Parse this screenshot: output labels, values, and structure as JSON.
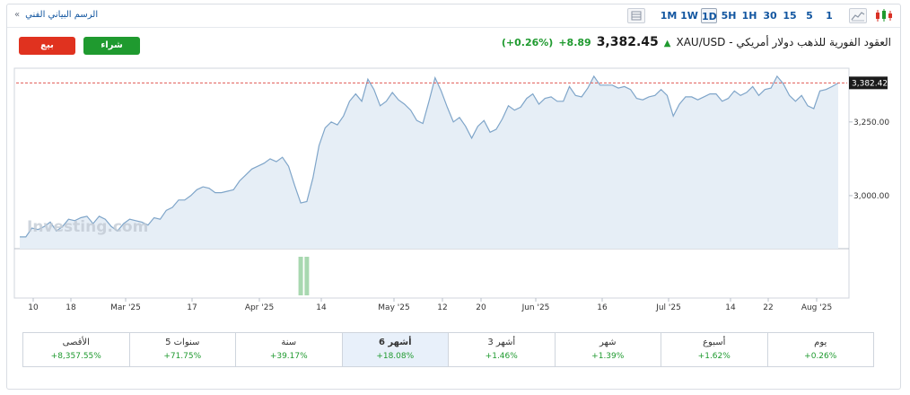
{
  "topbar": {
    "breadcrumb_label": "الرسم البياني الفني",
    "breadcrumb_arrow": "»",
    "timeframes": [
      "1M",
      "1W",
      "1D",
      "5H",
      "1H",
      "30",
      "15",
      "5",
      "1"
    ],
    "active_timeframe": "1D",
    "tool_icons": [
      "table-icon",
      "line-chart-icon",
      "candlestick-icon"
    ]
  },
  "actions": {
    "sell_label": "بيع",
    "buy_label": "شراء"
  },
  "quote": {
    "title": "XAU/USD - العقود الفورية للذهب دولار أمريكي",
    "price": "3,382.45",
    "change": "+8.89",
    "change_pct": "(+0.26%)",
    "up_color": "#1f9a2f"
  },
  "chart_data": {
    "type": "area",
    "watermark": "Investing.com",
    "last_price_label": "3,382.42",
    "last_price": 3382.42,
    "y_ticks": [
      {
        "label": "3,250.00",
        "value": 3250
      },
      {
        "label": "3,000.00",
        "value": 3000
      }
    ],
    "ylim": [
      2820,
      3420
    ],
    "x_ticks": [
      "10",
      "18",
      "Mar '25",
      "17",
      "Apr '25",
      "14",
      "May '25",
      "12",
      "20",
      "Jun '25",
      "16",
      "Jul '25",
      "14",
      "22",
      "Aug '25"
    ],
    "values": [
      2860,
      2860,
      2890,
      2885,
      2895,
      2910,
      2880,
      2895,
      2920,
      2915,
      2925,
      2930,
      2905,
      2930,
      2920,
      2895,
      2880,
      2905,
      2920,
      2915,
      2910,
      2900,
      2925,
      2920,
      2950,
      2960,
      2985,
      2985,
      3000,
      3020,
      3030,
      3025,
      3010,
      3010,
      3015,
      3020,
      3050,
      3070,
      3090,
      3100,
      3110,
      3125,
      3115,
      3130,
      3100,
      3035,
      2975,
      2980,
      3060,
      3170,
      3230,
      3250,
      3240,
      3270,
      3320,
      3345,
      3320,
      3395,
      3360,
      3305,
      3320,
      3350,
      3325,
      3310,
      3290,
      3255,
      3245,
      3320,
      3400,
      3355,
      3300,
      3250,
      3265,
      3235,
      3195,
      3235,
      3255,
      3215,
      3225,
      3260,
      3305,
      3290,
      3300,
      3330,
      3345,
      3310,
      3330,
      3335,
      3320,
      3320,
      3370,
      3340,
      3335,
      3365,
      3405,
      3375,
      3375,
      3375,
      3365,
      3370,
      3360,
      3330,
      3325,
      3335,
      3340,
      3360,
      3340,
      3270,
      3310,
      3335,
      3335,
      3325,
      3335,
      3345,
      3345,
      3320,
      3330,
      3355,
      3340,
      3350,
      3370,
      3340,
      3360,
      3365,
      3405,
      3380,
      3340,
      3320,
      3340,
      3305,
      3295,
      3355,
      3360,
      3370,
      3382
    ],
    "volume_bars": [
      {
        "index": 46,
        "value": 1
      },
      {
        "index": 47,
        "value": 1
      }
    ],
    "line_color": "#7fa5c9",
    "fill_color": "#e6eef6",
    "reference_line_color": "#e15b55"
  },
  "performance": [
    {
      "label": "يوم",
      "value": "+0.26%"
    },
    {
      "label": "أسبوع",
      "value": "+1.62%"
    },
    {
      "label": "شهر",
      "value": "+1.39%"
    },
    {
      "label": "3 أشهر",
      "value": "+1.46%"
    },
    {
      "label": "6 أشهر",
      "value": "+18.08%",
      "active": true
    },
    {
      "label": "سنة",
      "value": "+39.17%"
    },
    {
      "label": "5 سنوات",
      "value": "+71.75%"
    },
    {
      "label": "الأقصى",
      "value": "+8,357.55%"
    }
  ]
}
